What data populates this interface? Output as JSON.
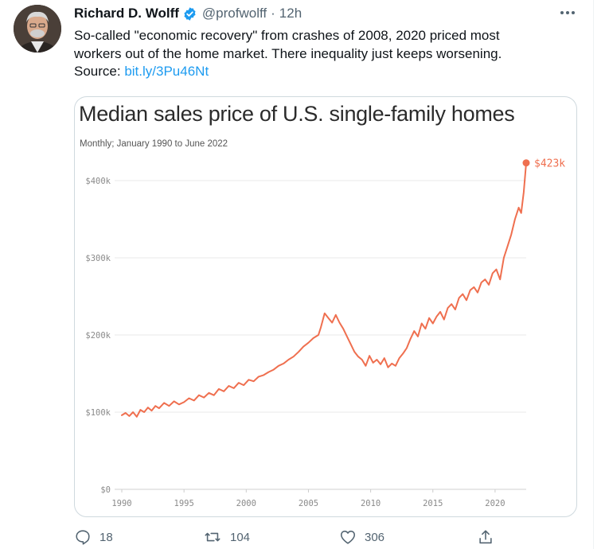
{
  "tweet": {
    "author_name": "Richard D. Wolff",
    "handle": "@profwolff",
    "separator": "·",
    "time": "12h",
    "text_line1": "So-called \"economic recovery\" from crashes of 2008, 2020 priced most",
    "text_line2": "workers out of the home market. There inequality just keeps worsening.",
    "source_label": "Source:",
    "source_link": "bit.ly/3Pu46Nt"
  },
  "actions": {
    "replies": "18",
    "retweets": "104",
    "likes": "306"
  },
  "icons": [
    "avatar-photo",
    "verified-badge-icon",
    "more-options-icon",
    "reply-icon",
    "retweet-icon",
    "like-icon",
    "share-icon"
  ],
  "colors": {
    "link": "#1d9bf0",
    "verified": "#1d9bf0",
    "line": "#ef6f4f",
    "muted": "#536471"
  },
  "chart_data": {
    "type": "line",
    "title": "Median sales price of U.S. single-family homes",
    "subtitle": "Monthly; January 1990 to June 2022",
    "xlabel": "",
    "ylabel": "",
    "x_ticks": [
      1990,
      1995,
      2000,
      2005,
      2010,
      2015,
      2020
    ],
    "y_ticks": [
      0,
      100,
      200,
      300,
      400
    ],
    "y_tick_labels": [
      "$0",
      "$100k",
      "$200k",
      "$300k",
      "$400k"
    ],
    "xlim": [
      1990,
      2022.5
    ],
    "ylim": [
      0,
      423
    ],
    "grid": "horizontal",
    "end_label": "$423k",
    "series": [
      {
        "x": [
          1990.0,
          1990.3,
          1990.6,
          1990.9,
          1991.2,
          1991.5,
          1991.8,
          1992.1,
          1992.4,
          1992.7,
          1993.0,
          1993.4,
          1993.8,
          1994.2,
          1994.6,
          1995.0,
          1995.4,
          1995.8,
          1996.2,
          1996.6,
          1997.0,
          1997.4,
          1997.8,
          1998.2,
          1998.6,
          1999.0,
          1999.4,
          1999.8,
          2000.2,
          2000.6,
          2001.0,
          2001.4,
          2001.8,
          2002.2,
          2002.6,
          2003.0,
          2003.4,
          2003.8,
          2004.2,
          2004.6,
          2005.0,
          2005.4,
          2005.8,
          2006.0,
          2006.3,
          2006.6,
          2006.9,
          2007.2,
          2007.5,
          2007.8,
          2008.1,
          2008.4,
          2008.7,
          2009.0,
          2009.3,
          2009.6,
          2009.9,
          2010.2,
          2010.5,
          2010.8,
          2011.1,
          2011.4,
          2011.7,
          2012.0,
          2012.3,
          2012.6,
          2012.9,
          2013.2,
          2013.5,
          2013.8,
          2014.1,
          2014.4,
          2014.7,
          2015.0,
          2015.3,
          2015.6,
          2015.9,
          2016.2,
          2016.5,
          2016.8,
          2017.1,
          2017.4,
          2017.7,
          2018.0,
          2018.3,
          2018.6,
          2018.9,
          2019.2,
          2019.5,
          2019.8,
          2020.1,
          2020.4,
          2020.7,
          2021.0,
          2021.3,
          2021.6,
          2021.9,
          2022.1,
          2022.3,
          2022.5
        ],
        "y": [
          96,
          99,
          95,
          100,
          94,
          103,
          100,
          106,
          102,
          108,
          105,
          112,
          108,
          114,
          110,
          113,
          118,
          115,
          122,
          119,
          125,
          122,
          130,
          127,
          134,
          131,
          138,
          135,
          142,
          140,
          146,
          148,
          152,
          155,
          160,
          163,
          168,
          172,
          178,
          185,
          190,
          196,
          200,
          210,
          228,
          222,
          216,
          226,
          216,
          208,
          198,
          188,
          178,
          172,
          168,
          160,
          173,
          164,
          168,
          162,
          170,
          158,
          163,
          160,
          170,
          176,
          183,
          195,
          205,
          198,
          215,
          208,
          222,
          215,
          224,
          230,
          220,
          235,
          240,
          233,
          248,
          253,
          245,
          258,
          262,
          255,
          268,
          272,
          265,
          280,
          285,
          272,
          300,
          315,
          330,
          350,
          365,
          358,
          385,
          423
        ]
      }
    ]
  }
}
